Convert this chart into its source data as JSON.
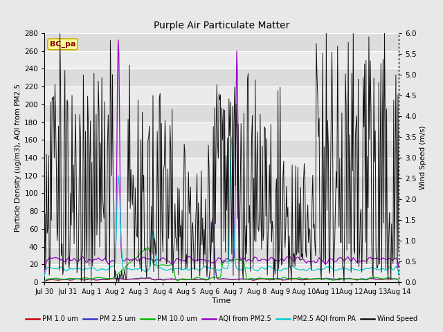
{
  "title": "Purple Air Particulate Matter",
  "xlabel": "Time",
  "ylabel_left": "Particle Density (ug/m3), AQI from PM2.5",
  "ylabel_right": "Wind Speed (m/s)",
  "ylim_left": [
    0,
    280
  ],
  "ylim_right": [
    0,
    6.0
  ],
  "yticks_left": [
    0,
    20,
    40,
    60,
    80,
    100,
    120,
    140,
    160,
    180,
    200,
    220,
    240,
    260,
    280
  ],
  "yticks_right": [
    0.0,
    0.5,
    1.0,
    1.5,
    2.0,
    2.5,
    3.0,
    3.5,
    4.0,
    4.5,
    5.0,
    5.5,
    6.0
  ],
  "xtick_labels": [
    "Jul 30",
    "Jul 31",
    "Aug 1",
    "Aug 2",
    "Aug 3",
    "Aug 4",
    "Aug 5",
    "Aug 6",
    "Aug 7",
    "Aug 8",
    "Aug 9",
    "Aug 10",
    "Aug 11",
    "Aug 12",
    "Aug 13",
    "Aug 14"
  ],
  "annotation_text": "BC_pa",
  "annotation_color": "#8B0000",
  "annotation_bg": "#FFFF99",
  "annotation_border": "#CCAA00",
  "colors": {
    "pm1": "#CC0000",
    "pm25": "#3333CC",
    "pm10": "#00BB00",
    "aqi_pm25": "#9900CC",
    "aqi_pa": "#00CCCC",
    "wind": "#111111"
  },
  "legend_labels": [
    "PM 1.0 um",
    "PM 2.5 um",
    "PM 10.0 um",
    "AQI from PM2.5",
    "PM2.5 AQI from PA",
    "Wind Speed"
  ],
  "fig_bg": "#E8E8E8",
  "plot_bg_light": "#EBEBEB",
  "plot_bg_dark": "#D8D8D8",
  "grid_color": "#FFFFFF",
  "n_points": 500,
  "band_colors": [
    "#EFEFEF",
    "#DEDEDE"
  ]
}
